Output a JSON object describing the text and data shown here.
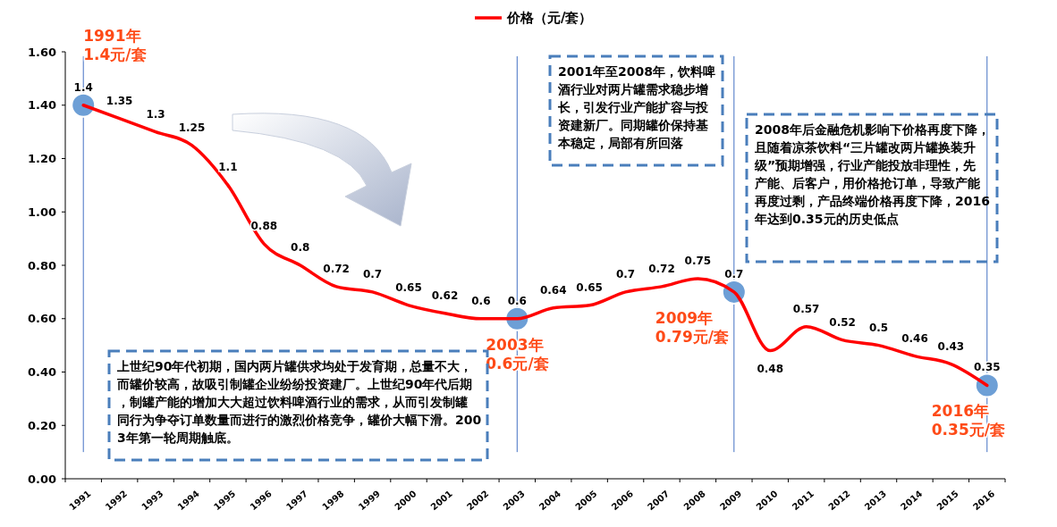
{
  "chart_data": {
    "type": "line",
    "categories": [
      "1991",
      "1992",
      "1993",
      "1994",
      "1995",
      "1996",
      "1997",
      "1998",
      "1999",
      "2000",
      "2001",
      "2002",
      "2003",
      "2004",
      "2005",
      "2006",
      "2007",
      "2008",
      "2009",
      "2010",
      "2011",
      "2012",
      "2013",
      "2014",
      "2015",
      "2016"
    ],
    "series": [
      {
        "name": "价格（元/套）",
        "color": "#ff0000",
        "values": [
          1.4,
          1.35,
          1.3,
          1.25,
          1.1,
          0.88,
          0.8,
          0.72,
          0.7,
          0.65,
          0.62,
          0.6,
          0.6,
          0.64,
          0.65,
          0.7,
          0.72,
          0.75,
          0.7,
          0.48,
          0.57,
          0.52,
          0.5,
          0.46,
          0.43,
          0.35
        ]
      }
    ],
    "ylim": [
      0,
      1.6
    ],
    "yticks": [
      {
        "value": 0,
        "label": "0.00"
      },
      {
        "value": 0.2,
        "label": "0.20"
      },
      {
        "value": 0.4,
        "label": "0.40"
      },
      {
        "value": 0.6,
        "label": "0.60"
      },
      {
        "value": 0.8,
        "label": "0.80"
      },
      {
        "value": 1,
        "label": "1.00"
      },
      {
        "value": 1.2,
        "label": "1.20"
      },
      {
        "value": 1.4,
        "label": "1.40"
      },
      {
        "value": 1.6,
        "label": "1.60"
      }
    ],
    "data_labels": true,
    "grid": false,
    "legend": "top",
    "marker": "none",
    "line_style": "solid",
    "ref_lines": [
      {
        "axis": "x",
        "value": "1991",
        "color": "#4472c4"
      },
      {
        "axis": "x",
        "value": "2003",
        "color": "#4472c4"
      },
      {
        "axis": "x",
        "value": "2009",
        "color": "#4472c4"
      },
      {
        "axis": "x",
        "value": "2016",
        "color": "#4472c4"
      }
    ],
    "annotations": [
      {
        "text": "1991年\n1.4元/套",
        "x": "1991",
        "y": 1.4
      },
      {
        "text": "2003年\n0.6元/套",
        "x": "2003",
        "y": 0.6
      },
      {
        "text": "2009年\n0.79元/套",
        "x": "2009",
        "y": 0.7
      },
      {
        "text": "2016年\n0.35元/套",
        "x": "2016",
        "y": 0.35
      },
      "上世纪90年代初期，国内两片罐供求均处于发育期，总量不大，而罐价较高，故吸引制罐企业纷纷投资建厂。上世纪90年代后期，制罐产能的增加大大超过饮料啤酒行业的需求，从而引发制罐同行为争夺订单数量而进行的激烈价格竞争，罐价大幅下滑。2003年第一轮周期触底。",
      "2001年至2008年，饮料啤酒行业对两片罐需求稳步增长，引发行业产能扩容与投资建新厂。同期罐价保持基本稳定，局部有所回落",
      "2008年后金融危机影响下价格再度下降，且随着凉茶饮料“三片罐改两片罐换装升级”预期增强，行业产能投放非理性，先产能、后客户，用价格抢订单，导致产能再度过剩，产品终端价格再度下降，2016年达到0.35元的历史低点"
    ]
  }
}
